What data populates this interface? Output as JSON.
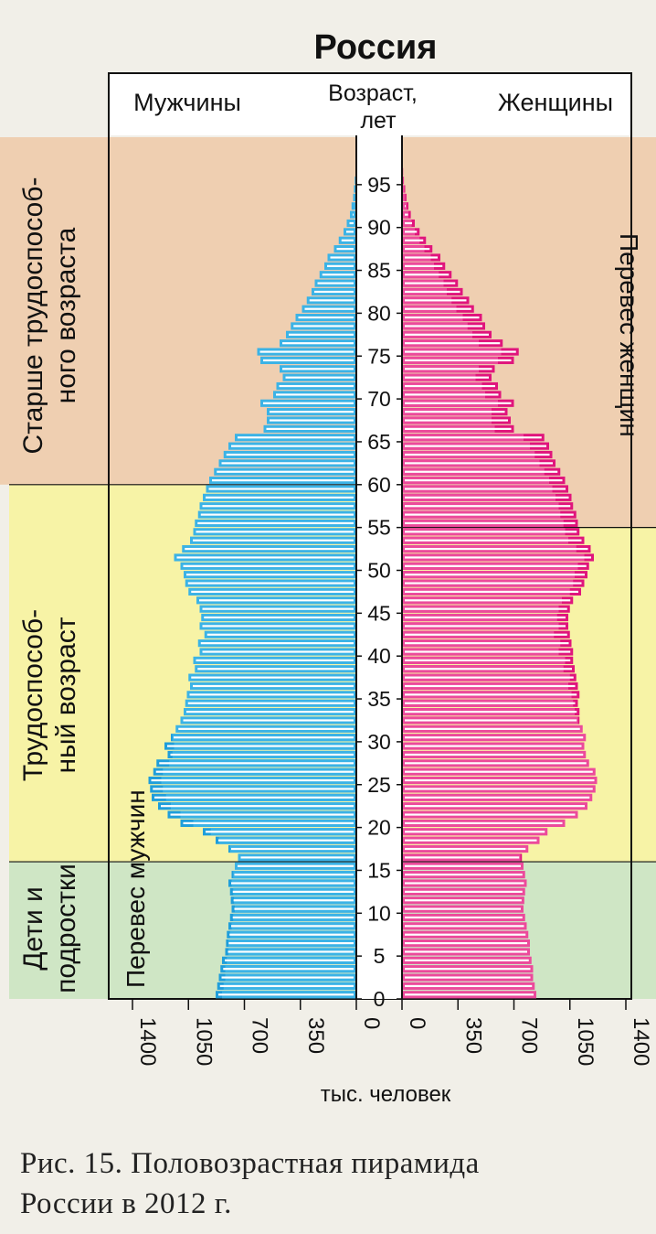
{
  "chart_data": {
    "type": "population-pyramid",
    "title": "Россия",
    "left_header": "Мужчины",
    "right_header": "Женщины",
    "center_header_line1": "Возраст,",
    "center_header_line2": "лет",
    "xlabel": "тыс. человек",
    "x_ticks_left": [
      "1400",
      "1050",
      "700",
      "350",
      "0"
    ],
    "x_ticks_right": [
      "0",
      "350",
      "700",
      "1050",
      "1400"
    ],
    "x_tick_values": [
      0,
      350,
      700,
      1050,
      1400
    ],
    "age_ticks": [
      "0",
      "5",
      "10",
      "15",
      "20",
      "25",
      "30",
      "35",
      "40",
      "45",
      "50",
      "55",
      "60",
      "65",
      "70",
      "75",
      "80",
      "85",
      "90",
      "95"
    ],
    "xlim": [
      0,
      1400
    ],
    "age_range": [
      0,
      100
    ],
    "annotation_male_surplus": "Перевес мужчин",
    "annotation_female_surplus": "Перевес женщин",
    "groups": [
      {
        "key": "children",
        "label_line1": "Дети и",
        "label_line2": "подростки",
        "age_from": 0,
        "age_to": 16,
        "color": "#cfe6c5"
      },
      {
        "key": "working",
        "label_line1": "Трудоспособ-",
        "label_line2": "ный возраст",
        "age_from": 16,
        "age_to_men": 60,
        "age_to_women": 55,
        "color": "#f7f3a6"
      },
      {
        "key": "retired",
        "label_line1": "Старше трудоспособ-",
        "label_line2": "ного возраста",
        "age_to": 100,
        "color": "#efcfb1"
      }
    ],
    "colors": {
      "male": "#3bb3e6",
      "female": "#ec4a9b",
      "male_surplus": "#1f9edb",
      "female_surplus": "#e0157c"
    },
    "series": [
      {
        "name": "Мужчины",
        "values": [
          880,
          870,
          860,
          850,
          840,
          820,
          815,
          810,
          800,
          790,
          780,
          785,
          790,
          800,
          780,
          760,
          740,
          800,
          880,
          960,
          1100,
          1180,
          1240,
          1280,
          1290,
          1300,
          1270,
          1250,
          1180,
          1200,
          1160,
          1130,
          1100,
          1080,
          1070,
          1060,
          1040,
          1050,
          1010,
          1020,
          980,
          990,
          950,
          980,
          970,
          980,
          1000,
          1050,
          1070,
          1080,
          1100,
          1140,
          1090,
          1040,
          1020,
          1010,
          990,
          980,
          960,
          940,
          920,
          890,
          860,
          830,
          800,
          760,
          580,
          560,
          560,
          600,
          520,
          500,
          460,
          480,
          600,
          620,
          480,
          440,
          410,
          380,
          340,
          310,
          280,
          260,
          230,
          200,
          180,
          140,
          110,
          80,
          60,
          40,
          30,
          20,
          15,
          10,
          5,
          3,
          2,
          1
        ]
      },
      {
        "name": "Женщины",
        "values": [
          840,
          830,
          820,
          820,
          810,
          800,
          800,
          790,
          780,
          770,
          760,
          765,
          770,
          780,
          770,
          760,
          750,
          790,
          860,
          910,
          1020,
          1100,
          1160,
          1190,
          1210,
          1220,
          1210,
          1170,
          1150,
          1140,
          1150,
          1130,
          1110,
          1110,
          1100,
          1110,
          1100,
          1090,
          1080,
          1070,
          1070,
          1060,
          1050,
          1040,
          1040,
          1050,
          1070,
          1120,
          1140,
          1160,
          1170,
          1200,
          1180,
          1140,
          1110,
          1100,
          1090,
          1070,
          1060,
          1040,
          1020,
          990,
          960,
          940,
          920,
          890,
          700,
          680,
          660,
          700,
          620,
          600,
          560,
          580,
          700,
          730,
          630,
          560,
          520,
          500,
          450,
          420,
          380,
          350,
          310,
          270,
          240,
          190,
          150,
          110,
          80,
          55,
          40,
          28,
          20,
          12,
          7,
          4,
          2,
          1
        ]
      }
    ]
  },
  "caption": {
    "line1": "Рис. 15. Половозрастная пирамида",
    "line2": "России в 2012 г."
  }
}
